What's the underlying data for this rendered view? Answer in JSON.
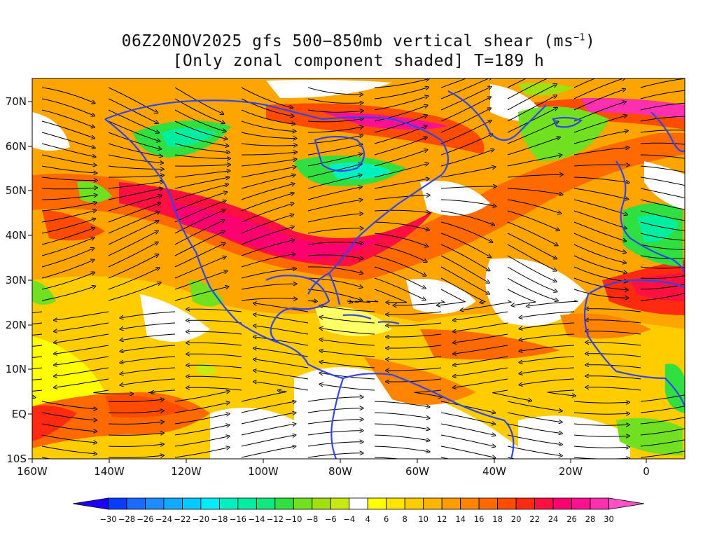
{
  "title": {
    "line1": "06Z20NOV2025 gfs 500−850mb vertical shear (ms",
    "unit_sup": "−1",
    "line1_end": ")",
    "line2": "[Only zonal component shaded] T=189 h"
  },
  "map": {
    "lat_labels": [
      "70N",
      "60N",
      "50N",
      "40N",
      "30N",
      "20N",
      "10N",
      "EQ",
      "10S"
    ],
    "lon_labels": [
      "160W",
      "140W",
      "120W",
      "100W",
      "80W",
      "60W",
      "40W",
      "20W",
      "0"
    ],
    "coastline_color": "#3344ee",
    "streamline_color": "#000000"
  },
  "colorbar": {
    "labels": [
      "−30",
      "−28",
      "−26",
      "−24",
      "−22",
      "−20",
      "−18",
      "−16",
      "−14",
      "−12",
      "−10",
      "−8",
      "−6",
      "−4",
      "4",
      "6",
      "8",
      "10",
      "12",
      "14",
      "16",
      "18",
      "20",
      "22",
      "24",
      "26",
      "28",
      "30"
    ],
    "colors": [
      "#1a00ff",
      "#0a3cff",
      "#1a6aff",
      "#1e8cff",
      "#12aaff",
      "#00caff",
      "#00ecf8",
      "#00f0c0",
      "#00eea0",
      "#10e880",
      "#30e040",
      "#70e020",
      "#a0e010",
      "#c8ea10",
      "#ffffff",
      "#ffff00",
      "#ffe400",
      "#ffcc00",
      "#ffb400",
      "#ff9c00",
      "#ff8400",
      "#ff6a00",
      "#ff4c00",
      "#ff2a10",
      "#ff1040",
      "#ff0070",
      "#ff1090",
      "#ff30b0",
      "#ff50c8"
    ]
  }
}
